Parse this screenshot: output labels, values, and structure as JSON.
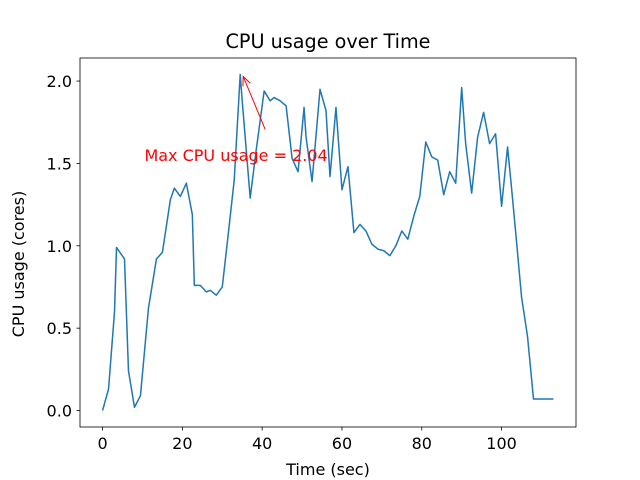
{
  "chart_data": {
    "type": "line",
    "title": "CPU usage over Time",
    "xlabel": "Time (sec)",
    "ylabel": "CPU usage (cores)",
    "xlim": [
      -5.65,
      118.65
    ],
    "ylim": [
      -0.1,
      2.14
    ],
    "xticks": [
      0,
      20,
      40,
      60,
      80,
      100
    ],
    "yticks": [
      0.0,
      0.5,
      1.0,
      1.5,
      2.0
    ],
    "xtick_labels": [
      "0",
      "20",
      "40",
      "60",
      "80",
      "100"
    ],
    "ytick_labels": [
      "0.0",
      "0.5",
      "1.0",
      "1.5",
      "2.0"
    ],
    "grid": false,
    "series": [
      {
        "color": "#1f77b4",
        "x": [
          0,
          1.5,
          3,
          3.5,
          5.5,
          6.5,
          8,
          9.5,
          11.5,
          13.5,
          15,
          17,
          18,
          19.5,
          21,
          22.5,
          23,
          24.5,
          26,
          27,
          28.5,
          30,
          31.5,
          33,
          34.5,
          35,
          37,
          38.5,
          40.5,
          42,
          43,
          44.5,
          46,
          47.5,
          49,
          50.5,
          51,
          52.5,
          54.5,
          56,
          57,
          58.5,
          60,
          61.5,
          63,
          64.5,
          66,
          67.5,
          69,
          70.5,
          72,
          73.5,
          75,
          76.5,
          78,
          79.5,
          81,
          82.5,
          84,
          85.5,
          87,
          88.5,
          90,
          91,
          92.5,
          94,
          95.5,
          97,
          98.5,
          100,
          101.5,
          102.5,
          103.5,
          105,
          106.5,
          108,
          110,
          111.5,
          113
        ],
        "y": [
          0.0,
          0.13,
          0.6,
          0.99,
          0.92,
          0.24,
          0.02,
          0.09,
          0.62,
          0.92,
          0.96,
          1.28,
          1.35,
          1.3,
          1.38,
          1.19,
          0.76,
          0.76,
          0.72,
          0.73,
          0.7,
          0.75,
          1.07,
          1.4,
          2.04,
          1.88,
          1.29,
          1.58,
          1.94,
          1.88,
          1.9,
          1.88,
          1.85,
          1.53,
          1.45,
          1.84,
          1.66,
          1.39,
          1.95,
          1.82,
          1.42,
          1.84,
          1.34,
          1.48,
          1.08,
          1.13,
          1.09,
          1.01,
          0.98,
          0.97,
          0.94,
          1.0,
          1.09,
          1.04,
          1.18,
          1.3,
          1.63,
          1.54,
          1.52,
          1.31,
          1.45,
          1.38,
          1.96,
          1.62,
          1.32,
          1.66,
          1.81,
          1.62,
          1.68,
          1.24,
          1.6,
          1.35,
          1.09,
          0.69,
          0.45,
          0.07,
          0.07,
          0.07,
          0.07
        ]
      }
    ],
    "annotation": {
      "text": "Max CPU usage = 2.04",
      "color": "#ff0000",
      "point": [
        35,
        2.04
      ],
      "text_anchor_data": [
        10.5,
        1.55
      ]
    }
  }
}
